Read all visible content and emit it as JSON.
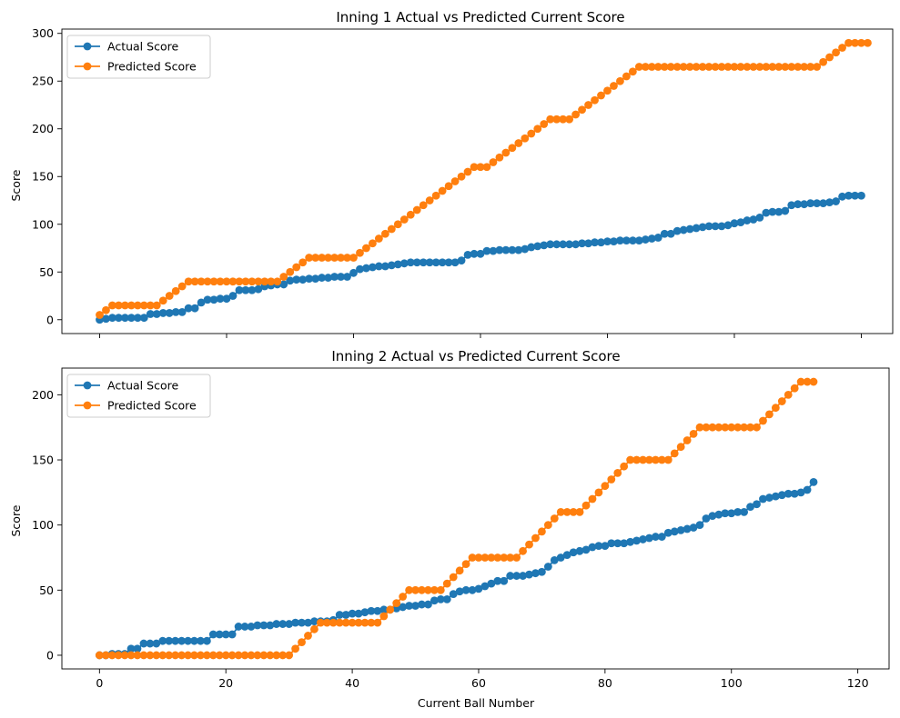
{
  "chart_data": [
    {
      "type": "line",
      "title": "Inning 1 Actual vs Predicted Current Score",
      "xlabel": "",
      "ylabel": "Score",
      "xlim": [
        -5.95,
        124.95
      ],
      "ylim": [
        -14.5,
        304.5
      ],
      "xticks": [
        0,
        20,
        40,
        60,
        80,
        100,
        120
      ],
      "xtick_labels_visible": false,
      "yticks": [
        0,
        50,
        100,
        150,
        200,
        250,
        300
      ],
      "ytick_labels": [
        "0",
        "50",
        "100",
        "150",
        "200",
        "250",
        "300"
      ],
      "legend": "top-left",
      "grid": false,
      "series": [
        {
          "name": "Actual Score",
          "color": "#1f77b4",
          "marker": "circle",
          "x_start": 0,
          "values": [
            0,
            1,
            2,
            2,
            2,
            2,
            2,
            2,
            6,
            6,
            7,
            7,
            8,
            8,
            12,
            12,
            18,
            21,
            21,
            22,
            22,
            25,
            31,
            31,
            31,
            32,
            35,
            36,
            37,
            37,
            41,
            42,
            42,
            43,
            43,
            44,
            44,
            45,
            45,
            45,
            49,
            53,
            54,
            55,
            56,
            56,
            57,
            58,
            59,
            60,
            60,
            60,
            60,
            60,
            60,
            60,
            60,
            62,
            68,
            69,
            69,
            72,
            72,
            73,
            73,
            73,
            73,
            74,
            76,
            77,
            78,
            79,
            79,
            79,
            79,
            79,
            80,
            80,
            81,
            81,
            82,
            82,
            83,
            83,
            83,
            83,
            84,
            85,
            86,
            90,
            90,
            93,
            94,
            95,
            96,
            97,
            98,
            98,
            98,
            99,
            101,
            102,
            104,
            105,
            107,
            112,
            113,
            113,
            114,
            120,
            121,
            121,
            122,
            122,
            122,
            123,
            124,
            129,
            130,
            130,
            130
          ]
        },
        {
          "name": "Predicted Score",
          "color": "#ff7f0e",
          "marker": "circle",
          "x_start": 0,
          "values": [
            5,
            10,
            15,
            15,
            15,
            15,
            15,
            15,
            15,
            15,
            20,
            25,
            30,
            35,
            40,
            40,
            40,
            40,
            40,
            40,
            40,
            40,
            40,
            40,
            40,
            40,
            40,
            40,
            40,
            45,
            50,
            55,
            60,
            65,
            65,
            65,
            65,
            65,
            65,
            65,
            65,
            70,
            75,
            80,
            85,
            90,
            95,
            100,
            105,
            110,
            115,
            120,
            125,
            130,
            135,
            140,
            145,
            150,
            155,
            160,
            160,
            160,
            165,
            170,
            175,
            180,
            185,
            190,
            195,
            200,
            205,
            210,
            210,
            210,
            210,
            215,
            220,
            225,
            230,
            235,
            240,
            245,
            250,
            255,
            260,
            265,
            265,
            265,
            265,
            265,
            265,
            265,
            265,
            265,
            265,
            265,
            265,
            265,
            265,
            265,
            265,
            265,
            265,
            265,
            265,
            265,
            265,
            265,
            265,
            265,
            265,
            265,
            265,
            265,
            270,
            275,
            280,
            285,
            290,
            290,
            290,
            290
          ]
        }
      ]
    },
    {
      "type": "line",
      "title": "Inning 2 Actual vs Predicted Current Score",
      "xlabel": "Current Ball Number",
      "ylabel": "Score",
      "xlim": [
        -5.95,
        124.95
      ],
      "ylim": [
        -10.5,
        220.5
      ],
      "xticks": [
        0,
        20,
        40,
        60,
        80,
        100,
        120
      ],
      "xtick_labels": [
        "0",
        "20",
        "40",
        "60",
        "80",
        "100",
        "120"
      ],
      "yticks": [
        0,
        50,
        100,
        150,
        200
      ],
      "ytick_labels": [
        "0",
        "50",
        "100",
        "150",
        "200"
      ],
      "legend": "top-left",
      "grid": false,
      "series": [
        {
          "name": "Actual Score",
          "color": "#1f77b4",
          "marker": "circle",
          "x_start": 0,
          "values": [
            0,
            0,
            1,
            1,
            1,
            5,
            5,
            9,
            9,
            9,
            11,
            11,
            11,
            11,
            11,
            11,
            11,
            11,
            16,
            16,
            16,
            16,
            22,
            22,
            22,
            23,
            23,
            23,
            24,
            24,
            24,
            25,
            25,
            25,
            26,
            26,
            26,
            27,
            31,
            31,
            32,
            32,
            33,
            34,
            34,
            35,
            35,
            36,
            37,
            38,
            38,
            39,
            39,
            42,
            43,
            43,
            47,
            49,
            50,
            50,
            51,
            53,
            55,
            57,
            57,
            61,
            61,
            61,
            62,
            63,
            64,
            68,
            73,
            75,
            77,
            79,
            80,
            81,
            83,
            84,
            84,
            86,
            86,
            86,
            87,
            88,
            89,
            90,
            91,
            91,
            94,
            95,
            96,
            97,
            98,
            100,
            105,
            107,
            108,
            109,
            109,
            110,
            110,
            114,
            116,
            120,
            121,
            122,
            123,
            124,
            124,
            125,
            127,
            133
          ]
        },
        {
          "name": "Predicted Score",
          "color": "#ff7f0e",
          "marker": "circle",
          "x_start": 0,
          "values": [
            0,
            0,
            0,
            0,
            0,
            0,
            0,
            0,
            0,
            0,
            0,
            0,
            0,
            0,
            0,
            0,
            0,
            0,
            0,
            0,
            0,
            0,
            0,
            0,
            0,
            0,
            0,
            0,
            0,
            0,
            0,
            5,
            10,
            15,
            20,
            25,
            25,
            25,
            25,
            25,
            25,
            25,
            25,
            25,
            25,
            30,
            35,
            40,
            45,
            50,
            50,
            50,
            50,
            50,
            50,
            55,
            60,
            65,
            70,
            75,
            75,
            75,
            75,
            75,
            75,
            75,
            75,
            80,
            85,
            90,
            95,
            100,
            105,
            110,
            110,
            110,
            110,
            115,
            120,
            125,
            130,
            135,
            140,
            145,
            150,
            150,
            150,
            150,
            150,
            150,
            150,
            155,
            160,
            165,
            170,
            175,
            175,
            175,
            175,
            175,
            175,
            175,
            175,
            175,
            175,
            180,
            185,
            190,
            195,
            200,
            205,
            210,
            210,
            210
          ]
        }
      ]
    }
  ]
}
